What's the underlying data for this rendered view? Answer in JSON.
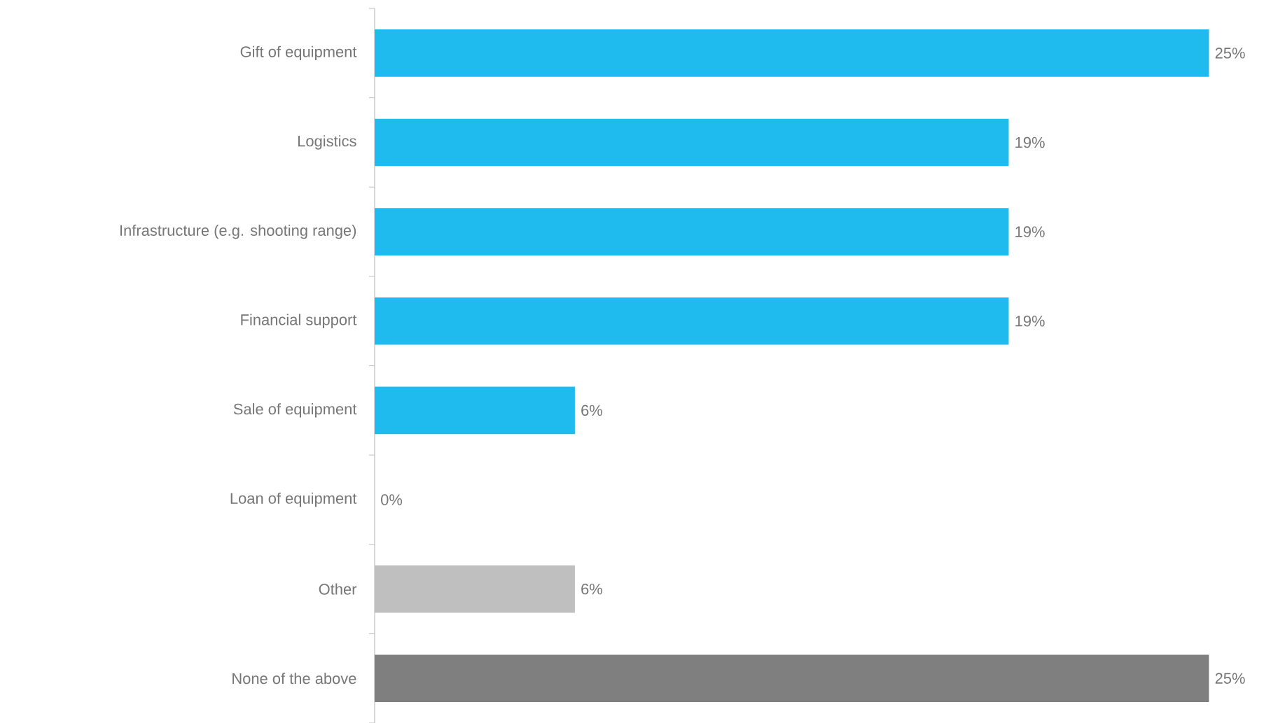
{
  "chart_data": {
    "type": "bar",
    "orientation": "horizontal",
    "categories": [
      "Gift of equipment",
      "Logistics",
      "Infrastructure (e.g. shooting range)",
      "Financial support",
      "Sale of equipment",
      "Loan of equipment",
      "Other",
      "None of the above"
    ],
    "values": [
      25,
      19,
      19,
      19,
      6,
      0,
      6,
      25
    ],
    "colors": [
      "#20bbee",
      "#20bbee",
      "#20bbee",
      "#20bbee",
      "#20bbee",
      "#20bbee",
      "#bfbfbf",
      "#7f7f7f"
    ],
    "value_labels": [
      "25%",
      "19%",
      "19%",
      "19%",
      "6%",
      "0%",
      "6%",
      "25%"
    ]
  }
}
